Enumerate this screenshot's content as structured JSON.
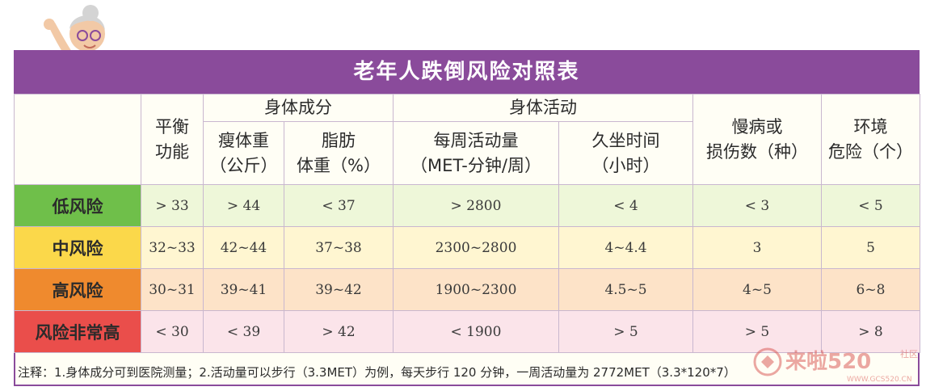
{
  "title": "老年人跌倒风险对照表",
  "headers": {
    "balance": "平衡\n功能",
    "body_composition": "身体成分",
    "lean_weight": "瘦体重\n（公斤）",
    "fat_weight": "脂肪\n体重（%）",
    "physical_activity": "身体活动",
    "weekly_activity": "每周活动量\n（MET-分钟/周）",
    "sedentary_time": "久坐时间\n（小时）",
    "chronic_injury": "慢病或\n损伤数（种）",
    "environment_risk": "环境\n危险（个）"
  },
  "rows": [
    {
      "level": "低风险",
      "balance": "> 33",
      "lean": "> 44",
      "fat": "< 37",
      "activity": "> 2800",
      "sedentary": "< 4",
      "chronic": "< 3",
      "env": "< 5"
    },
    {
      "level": "中风险",
      "balance": "32~33",
      "lean": "42~44",
      "fat": "37~38",
      "activity": "2300~2800",
      "sedentary": "4~4.4",
      "chronic": "3",
      "env": "5"
    },
    {
      "level": "高风险",
      "balance": "30~31",
      "lean": "39~41",
      "fat": "39~42",
      "activity": "1900~2300",
      "sedentary": "4.5~5",
      "chronic": "4~5",
      "env": "6~8"
    },
    {
      "level": "风险非常高",
      "balance": "< 30",
      "lean": "< 39",
      "fat": "> 42",
      "activity": "< 1900",
      "sedentary": "> 5",
      "chronic": "> 5",
      "env": "> 8"
    }
  ],
  "note": "注释：1.身体成分可到医院测量；2.活动量可以步行（3.3MET）为例，每天步行 120 分钟，一周活动量为 2772MET（3.3*120*7）",
  "watermark": {
    "brand": "来啦520",
    "sub": "社区",
    "url": "WWW.GCS520.CN"
  },
  "colors": {
    "header_purple": "#8a4b9b",
    "low": "#6fbf4a",
    "mid": "#fbd84a",
    "high": "#ef8a2e",
    "very_high": "#ea4e4b"
  }
}
